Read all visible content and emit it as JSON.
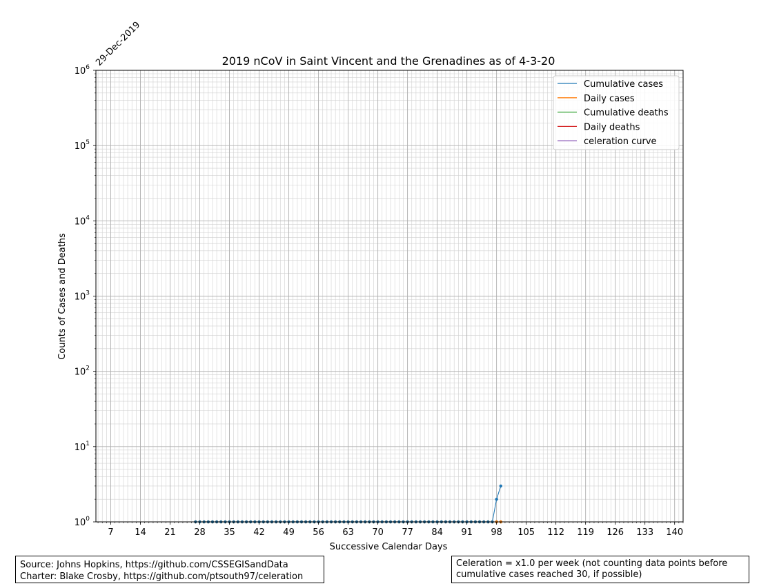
{
  "chart_data": {
    "type": "line",
    "title": "2019 nCoV in Saint Vincent and the Grenadines as of 4-3-20",
    "xlabel": "Successive Calendar Days",
    "ylabel": "Counts of Cases and Deaths",
    "start_date_label": "29-Dec-2019",
    "xlim": [
      3.5,
      142
    ],
    "ylim": [
      1,
      1000000
    ],
    "yscale": "log",
    "x_ticks": [
      7,
      14,
      21,
      28,
      35,
      42,
      49,
      56,
      63,
      70,
      77,
      84,
      91,
      98,
      105,
      112,
      119,
      126,
      133,
      140
    ],
    "y_tick_exponents": [
      0,
      1,
      2,
      3,
      4,
      5,
      6
    ],
    "grid": true,
    "legend_position": "top-right",
    "legend": [
      "Cumulative cases",
      "Daily cases",
      "Cumulative deaths",
      "Daily deaths",
      "celeration curve"
    ],
    "series": [
      {
        "name": "Cumulative cases",
        "color": "#1f77b4",
        "x_range": [
          27,
          99
        ],
        "nonzero_points": [
          [
            97,
            1
          ],
          [
            98,
            2
          ],
          [
            99,
            3
          ]
        ]
      },
      {
        "name": "Daily cases",
        "color": "#ff7f0e",
        "x_range": [
          27,
          99
        ],
        "nonzero_points": [
          [
            97,
            1
          ],
          [
            98,
            1
          ],
          [
            99,
            1
          ]
        ]
      },
      {
        "name": "Cumulative deaths",
        "color": "#2ca02c",
        "x_range": [
          27,
          99
        ],
        "nonzero_points": []
      },
      {
        "name": "Daily deaths",
        "color": "#d62728",
        "x_range": [
          27,
          99
        ],
        "nonzero_points": []
      },
      {
        "name": "celeration curve",
        "color": "#9467bd",
        "x_range": [],
        "nonzero_points": []
      }
    ]
  },
  "footer": {
    "source_line1": "Source: Johns Hopkins, https://github.com/CSSEGISandData",
    "source_line2": "Charter: Blake Crosby, https://github.com/ptsouth97/celeration",
    "celeration_line1": "Celeration = x1.0 per week (not counting data points before",
    "celeration_line2": "cumulative cases reached 30, if possible)"
  }
}
